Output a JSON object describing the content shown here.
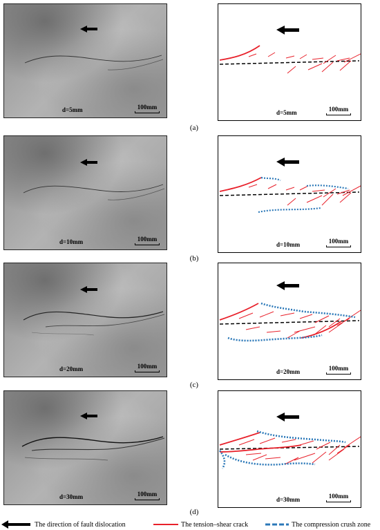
{
  "panels": [
    {
      "caption": "(a)",
      "label": "d=5mm",
      "scale": "100mm"
    },
    {
      "caption": "(b)",
      "label": "d=10mm",
      "scale": "100mm"
    },
    {
      "caption": "(c)",
      "label": "d=20mm",
      "scale": "100mm"
    },
    {
      "caption": "(d)",
      "label": "d=30mm",
      "scale": "100mm"
    }
  ],
  "legend": {
    "arrow": "The direction of fault dislocation",
    "crack": "The tension–shear crack",
    "zone": "The compression crush zone"
  },
  "colors": {
    "crack": "#e8202a",
    "zone": "#2b78b8",
    "fault": "#000000"
  }
}
